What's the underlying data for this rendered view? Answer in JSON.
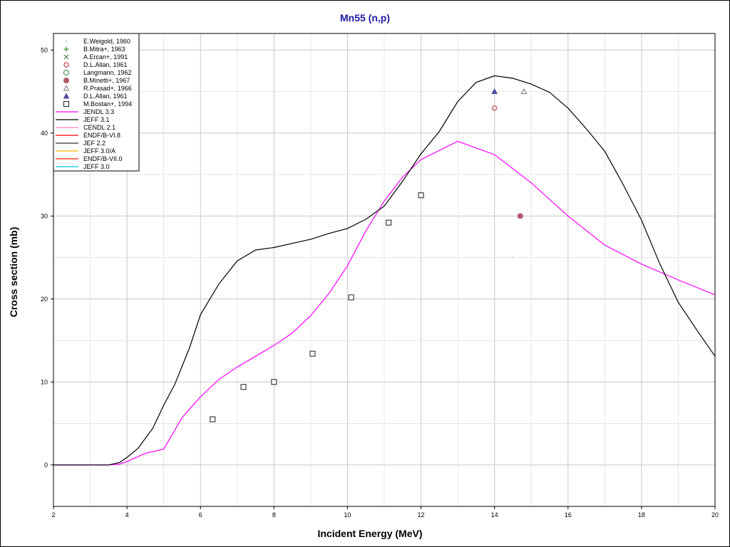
{
  "chart_data": {
    "type": "scatter",
    "title": "Mn55 (n,p)",
    "xlabel": "Incident Energy (MeV)",
    "ylabel": "Cross section (mb)",
    "xlim": [
      2,
      20
    ],
    "ylim": [
      -5,
      52
    ],
    "x_ticks": [
      2,
      4,
      6,
      8,
      10,
      12,
      14,
      16,
      18,
      20
    ],
    "y_ticks": [
      0,
      10,
      20,
      30,
      40,
      50
    ],
    "grid": true,
    "legend_position": "top-left",
    "experimental": [
      {
        "name": "E.Weigold, 1960",
        "marker": "dot",
        "color": "#8fbc8f",
        "points": [
          [
            14.5,
            25
          ]
        ]
      },
      {
        "name": "B.Mitra+, 1963",
        "marker": "plus",
        "color": "#2e8b2e",
        "points": []
      },
      {
        "name": "A.Ercan+, 1991",
        "marker": "cross",
        "color": "#3a7a3a",
        "points": []
      },
      {
        "name": "D.L.Allan, 1961",
        "marker": "pentagon-open",
        "color": "#c04050",
        "points": [
          [
            14.0,
            43
          ]
        ]
      },
      {
        "name": "Langmann, 1962",
        "marker": "circle-open",
        "color": "#5aa05a",
        "points": []
      },
      {
        "name": "B.Minetti+, 1967",
        "marker": "circle-filled",
        "color": "#b05a6a",
        "points": [
          [
            14.7,
            30
          ]
        ]
      },
      {
        "name": "R.Prasad+, 1966",
        "marker": "triangle-open",
        "color": "#7a7a7a",
        "points": [
          [
            14.8,
            45
          ]
        ]
      },
      {
        "name": "D.L.Allan, 1961",
        "marker": "triangle-filled",
        "color": "#4a4aa0",
        "points": [
          [
            14.0,
            45
          ]
        ]
      },
      {
        "name": "M.Bostan+, 1994",
        "marker": "square-open",
        "color": "#303030",
        "points": [
          [
            6.33,
            5.5
          ],
          [
            7.17,
            9.4
          ],
          [
            8.0,
            10.0
          ],
          [
            9.05,
            13.4
          ],
          [
            10.1,
            20.2
          ],
          [
            11.12,
            29.2
          ],
          [
            12.0,
            32.5
          ]
        ]
      }
    ],
    "evaluations": [
      {
        "name": "JENDL 3.3",
        "color": "#ff00ff",
        "values": [
          [
            2,
            0
          ],
          [
            3.5,
            0
          ],
          [
            3.8,
            0.1
          ],
          [
            4.0,
            0.4
          ],
          [
            4.5,
            1.4
          ],
          [
            5.0,
            1.9
          ],
          [
            5.5,
            5.7
          ],
          [
            6.0,
            8.2
          ],
          [
            6.5,
            10.3
          ],
          [
            7.0,
            11.8
          ],
          [
            7.5,
            13.1
          ],
          [
            8.0,
            14.4
          ],
          [
            8.5,
            15.9
          ],
          [
            9.0,
            18.0
          ],
          [
            9.5,
            20.7
          ],
          [
            10.0,
            24.0
          ],
          [
            10.5,
            28.2
          ],
          [
            11.0,
            31.8
          ],
          [
            11.5,
            34.7
          ],
          [
            12.0,
            36.8
          ],
          [
            13.0,
            39.0
          ],
          [
            14.0,
            37.4
          ],
          [
            15.0,
            34.0
          ],
          [
            16.0,
            30.0
          ],
          [
            17.0,
            26.5
          ],
          [
            18.0,
            24.2
          ],
          [
            19.0,
            22.3
          ],
          [
            20.0,
            20.5
          ]
        ]
      },
      {
        "name": "JEFF 3.1",
        "color": "#000000",
        "values": [
          [
            2,
            0
          ],
          [
            3.5,
            0
          ],
          [
            3.8,
            0.3
          ],
          [
            4.0,
            0.9
          ],
          [
            4.3,
            2.0
          ],
          [
            4.7,
            4.4
          ],
          [
            5.0,
            7.2
          ],
          [
            5.3,
            9.7
          ],
          [
            5.7,
            14.1
          ],
          [
            6.0,
            18.1
          ],
          [
            6.5,
            21.8
          ],
          [
            7.0,
            24.6
          ],
          [
            7.5,
            25.9
          ],
          [
            8.0,
            26.2
          ],
          [
            8.5,
            26.7
          ],
          [
            9.0,
            27.2
          ],
          [
            9.5,
            27.9
          ],
          [
            10.0,
            28.5
          ],
          [
            10.5,
            29.6
          ],
          [
            11.0,
            31.2
          ],
          [
            11.5,
            34.2
          ],
          [
            12.0,
            37.5
          ],
          [
            12.5,
            40.2
          ],
          [
            13.0,
            43.8
          ],
          [
            13.5,
            46.1
          ],
          [
            14.0,
            46.9
          ],
          [
            14.5,
            46.6
          ],
          [
            15.0,
            45.9
          ],
          [
            15.5,
            44.9
          ],
          [
            16.0,
            43.0
          ],
          [
            16.5,
            40.5
          ],
          [
            17.0,
            37.8
          ],
          [
            17.5,
            33.8
          ],
          [
            18.0,
            29.5
          ],
          [
            18.5,
            24.2
          ],
          [
            19.0,
            19.6
          ],
          [
            19.5,
            16.3
          ],
          [
            20.0,
            13.1
          ]
        ]
      },
      {
        "name": "CENDL 2.1",
        "color": "#ff80c0",
        "values": []
      },
      {
        "name": "ENDF/B-VI.8",
        "color": "#ff0000",
        "values": []
      },
      {
        "name": "JEF 2.2",
        "color": "#303030",
        "values": []
      },
      {
        "name": "JEFF 3.0/A",
        "color": "#ffb000",
        "values": []
      },
      {
        "name": "ENDF/B-VII.0",
        "color": "#ff2000",
        "values": []
      },
      {
        "name": "JEFF 3.0",
        "color": "#00c0e0",
        "values": []
      }
    ]
  }
}
